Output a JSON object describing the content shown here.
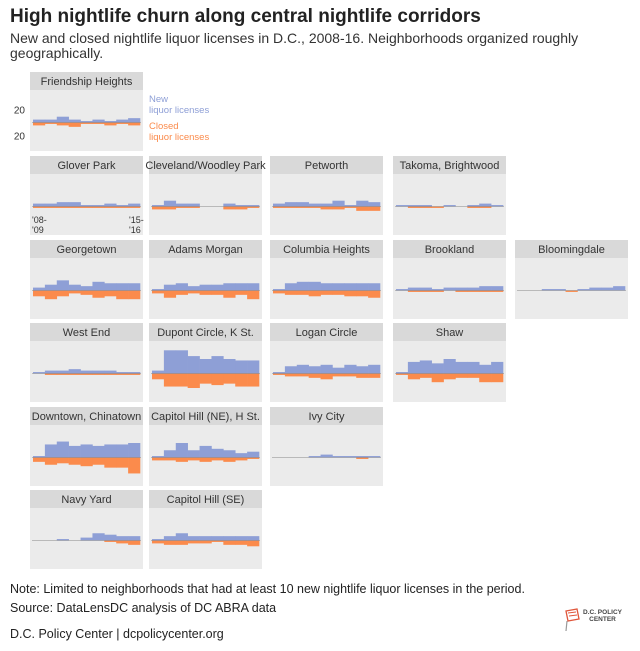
{
  "title": "High nightlife churn along central nightlife corridors",
  "subtitle": "New and closed nightlife liquor licenses in D.C., 2008-16. Neighborhoods organized roughly geographically.",
  "note": "Note: Limited to neighborhoods that had at least 10 new nightlife liquor licenses in the period.",
  "source": "Source: DataLensDC analysis of DC ABRA data",
  "credit": "D.C. Policy Center  |  dcpolicycenter.org",
  "logo": {
    "line1": "D.C. POLICY",
    "line2": "CENTER"
  },
  "colors": {
    "new": "#8e9fd6",
    "closed": "#fb8b4c",
    "panel": "#ebebeb",
    "strip": "#d9d9d9",
    "zero": "#888888"
  },
  "chart_data": {
    "type": "bar",
    "title": "High nightlife churn along central nightlife corridors",
    "subtitle": "New and closed nightlife liquor licenses in D.C., 2008-16. Neighborhoods organized roughly geographically.",
    "x": [
      2008,
      2009,
      2010,
      2011,
      2012,
      2013,
      2014,
      2015,
      2016
    ],
    "x_tick_labels": [
      "'08-\n'09",
      "'15-\n'16"
    ],
    "y_tick_labels": [
      "20",
      "20"
    ],
    "ylim": [
      -20,
      20
    ],
    "legend": {
      "new": "New\nliquor licenses",
      "closed": "Closed\nliquor licenses",
      "placement": "right of first panel"
    },
    "series_names": [
      "New liquor licenses",
      "Closed liquor licenses"
    ],
    "panels": [
      {
        "name": "Friendship Heights",
        "new": [
          2,
          2,
          4,
          2,
          1,
          2,
          1,
          2,
          3
        ],
        "closed": [
          2,
          1,
          2,
          3,
          1,
          1,
          2,
          1,
          2
        ]
      },
      {
        "name": "Glover Park",
        "new": [
          2,
          2,
          3,
          3,
          1,
          1,
          2,
          1,
          2
        ],
        "closed": [
          1,
          1,
          1,
          1,
          1,
          1,
          1,
          1,
          1
        ]
      },
      {
        "name": "Cleveland/Woodley Park",
        "new": [
          1,
          4,
          2,
          2,
          0,
          0,
          2,
          1,
          1
        ],
        "closed": [
          2,
          2,
          1,
          1,
          0,
          0,
          2,
          2,
          1
        ]
      },
      {
        "name": "Petworth",
        "new": [
          2,
          3,
          3,
          2,
          2,
          4,
          1,
          4,
          3
        ],
        "closed": [
          1,
          1,
          1,
          1,
          2,
          2,
          1,
          3,
          3
        ]
      },
      {
        "name": "Takoma, Brightwood",
        "new": [
          1,
          1,
          1,
          0,
          1,
          0,
          1,
          2,
          1
        ],
        "closed": [
          0,
          1,
          1,
          1,
          0,
          0,
          1,
          1,
          0
        ]
      },
      {
        "name": "Georgetown",
        "new": [
          2,
          4,
          7,
          4,
          3,
          6,
          5,
          5,
          5
        ],
        "closed": [
          4,
          6,
          4,
          2,
          3,
          5,
          4,
          6,
          6
        ]
      },
      {
        "name": "Adams Morgan",
        "new": [
          1,
          4,
          5,
          3,
          4,
          4,
          5,
          5,
          5
        ],
        "closed": [
          2,
          5,
          3,
          2,
          3,
          3,
          5,
          3,
          6
        ]
      },
      {
        "name": "Columbia Heights",
        "new": [
          1,
          5,
          6,
          6,
          5,
          5,
          5,
          5,
          5
        ],
        "closed": [
          2,
          3,
          3,
          4,
          3,
          3,
          4,
          4,
          5
        ]
      },
      {
        "name": "Brookland",
        "new": [
          1,
          2,
          2,
          1,
          2,
          2,
          2,
          3,
          3
        ],
        "closed": [
          0,
          1,
          1,
          1,
          0,
          1,
          1,
          1,
          1
        ]
      },
      {
        "name": "Bloomingdale",
        "new": [
          0,
          0,
          1,
          1,
          0,
          1,
          2,
          2,
          3
        ],
        "closed": [
          0,
          0,
          0,
          0,
          1,
          0,
          0,
          0,
          0
        ]
      },
      {
        "name": "West End",
        "new": [
          1,
          2,
          2,
          3,
          2,
          2,
          2,
          1,
          1
        ],
        "closed": [
          0,
          1,
          1,
          1,
          1,
          1,
          1,
          1,
          1
        ]
      },
      {
        "name": "Dupont Circle, K St.",
        "new": [
          2,
          16,
          16,
          12,
          10,
          12,
          10,
          9,
          9
        ],
        "closed": [
          4,
          9,
          9,
          10,
          7,
          8,
          7,
          9,
          9
        ]
      },
      {
        "name": "Logan Circle",
        "new": [
          1,
          5,
          6,
          5,
          6,
          4,
          6,
          5,
          6
        ],
        "closed": [
          1,
          2,
          2,
          3,
          4,
          2,
          2,
          3,
          3
        ]
      },
      {
        "name": "Shaw",
        "new": [
          1,
          8,
          9,
          7,
          10,
          8,
          8,
          6,
          8
        ],
        "closed": [
          1,
          4,
          3,
          6,
          4,
          3,
          3,
          6,
          6
        ]
      },
      {
        "name": "Downtown, Chinatown",
        "new": [
          1,
          9,
          11,
          8,
          9,
          8,
          9,
          9,
          10
        ],
        "closed": [
          3,
          5,
          4,
          5,
          6,
          5,
          7,
          7,
          11
        ]
      },
      {
        "name": "Capitol Hill (NE), H St.",
        "new": [
          1,
          5,
          10,
          5,
          8,
          6,
          5,
          3,
          4
        ],
        "closed": [
          2,
          2,
          3,
          2,
          3,
          2,
          3,
          2,
          1
        ]
      },
      {
        "name": "Ivy City",
        "new": [
          0,
          0,
          0,
          1,
          2,
          1,
          1,
          1,
          1
        ],
        "closed": [
          0,
          0,
          0,
          0,
          0,
          0,
          0,
          1,
          0
        ]
      },
      {
        "name": "Navy Yard",
        "new": [
          0,
          0,
          1,
          0,
          2,
          5,
          4,
          3,
          3
        ],
        "closed": [
          0,
          0,
          0,
          0,
          0,
          0,
          1,
          2,
          3
        ]
      },
      {
        "name": "Capitol Hill (SE)",
        "new": [
          1,
          3,
          5,
          3,
          3,
          3,
          3,
          3,
          3
        ],
        "closed": [
          2,
          3,
          3,
          2,
          2,
          1,
          3,
          3,
          4
        ]
      }
    ]
  }
}
